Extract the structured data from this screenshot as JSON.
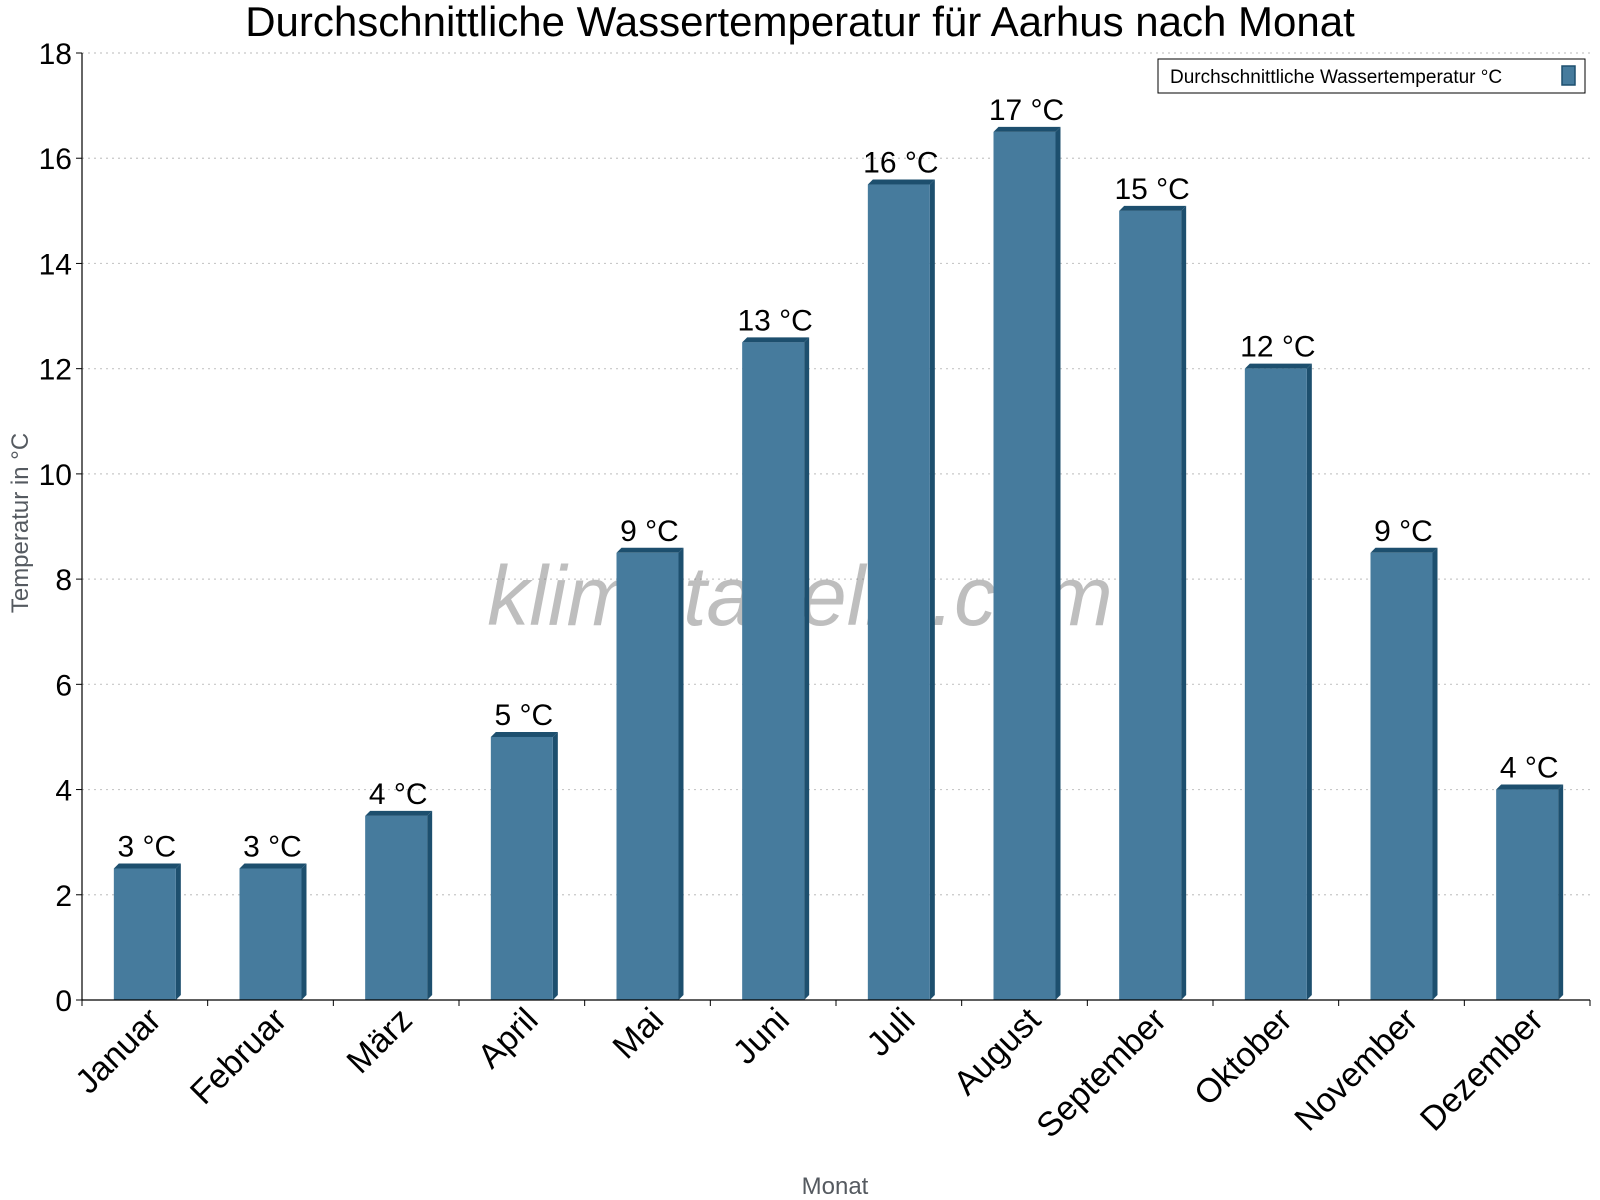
{
  "chart_data": {
    "type": "bar",
    "title": "Durchschnittliche Wassertemperatur für Aarhus nach Monat",
    "xlabel": "Monat",
    "ylabel": "Temperatur in °C",
    "categories": [
      "Januar",
      "Februar",
      "März",
      "April",
      "Mai",
      "Juni",
      "Juli",
      "August",
      "September",
      "Oktober",
      "November",
      "Dezember"
    ],
    "series": [
      {
        "name": "Durchschnittliche Wassertemperatur °C",
        "values": [
          2.5,
          2.5,
          3.5,
          5,
          8.5,
          12.5,
          15.5,
          16.5,
          15,
          12,
          8.5,
          4
        ],
        "labels": [
          "3 °C",
          "3 °C",
          "4 °C",
          "5 °C",
          "9 °C",
          "13 °C",
          "16 °C",
          "17 °C",
          "15 °C",
          "12 °C",
          "9 °C",
          "4 °C"
        ],
        "color": "#467b9d",
        "edge_color": "#1d4f6e"
      }
    ],
    "ylim": [
      0,
      18
    ],
    "yticks": [
      0,
      2,
      4,
      6,
      8,
      10,
      12,
      14,
      16,
      18
    ],
    "grid": true,
    "legend_position": "top-right",
    "watermark": "klimatabelle.com"
  }
}
